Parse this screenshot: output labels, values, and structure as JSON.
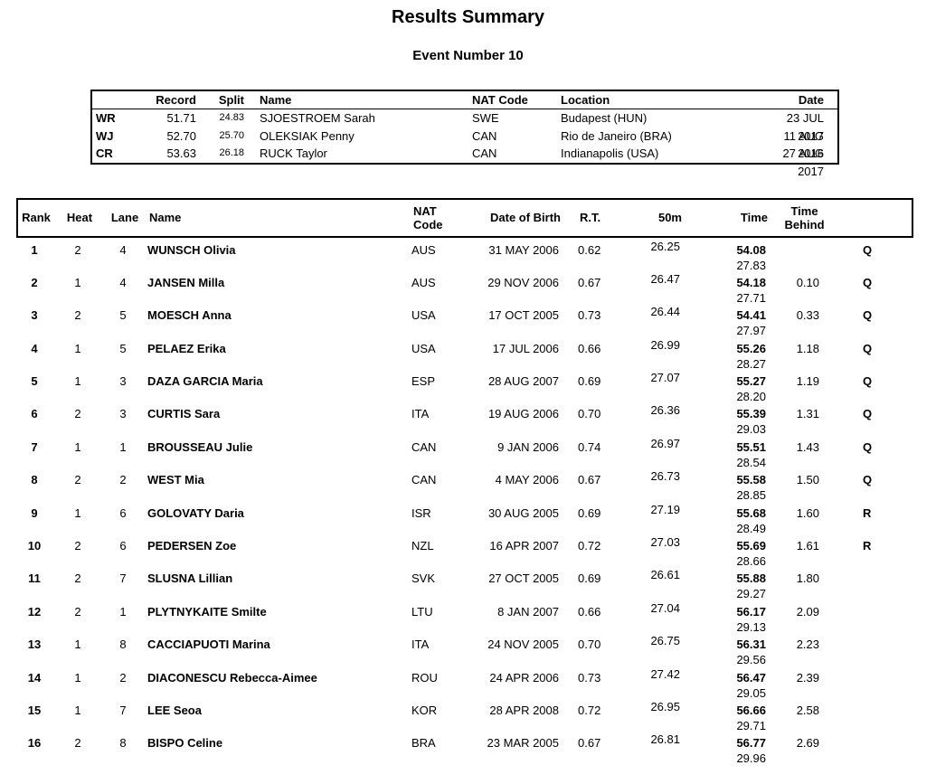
{
  "page": {
    "title": "Results Summary",
    "subtitle": "Event Number 10"
  },
  "colors": {
    "text": "#000000",
    "background": "#ffffff",
    "border": "#000000"
  },
  "records_table": {
    "headers": {
      "type": "",
      "record": "Record",
      "split": "Split",
      "name": "Name",
      "nat": "NAT Code",
      "location": "Location",
      "date": "Date"
    },
    "rows": [
      {
        "type": "WR",
        "record": "51.71",
        "split": "24.83",
        "name": "SJOESTROEM Sarah",
        "nat": "SWE",
        "location": "Budapest (HUN)",
        "date": "23 JUL 2017"
      },
      {
        "type": "WJ",
        "record": "52.70",
        "split": "25.70",
        "name": "OLEKSIAK Penny",
        "nat": "CAN",
        "location": "Rio de Janeiro (BRA)",
        "date": "11 AUG 2016"
      },
      {
        "type": "CR",
        "record": "53.63",
        "split": "26.18",
        "name": "RUCK Taylor",
        "nat": "CAN",
        "location": "Indianapolis (USA)",
        "date": "27 AUG 2017"
      }
    ]
  },
  "results_table": {
    "headers": {
      "rank": "Rank",
      "heat": "Heat",
      "lane": "Lane",
      "name": "Name",
      "nat": "NAT\nCode",
      "dob": "Date of Birth",
      "rt": "R.T.",
      "fifty": "50m",
      "time": "Time",
      "behind": "Time\nBehind",
      "qual": ""
    },
    "rows": [
      {
        "rank": "1",
        "heat": "2",
        "lane": "4",
        "name": "WUNSCH Olivia",
        "nat": "AUS",
        "dob": "31 MAY 2006",
        "rt": "0.62",
        "fifty": "26.25",
        "time": "54.08",
        "split": "27.83",
        "behind": "",
        "qual": "Q"
      },
      {
        "rank": "2",
        "heat": "1",
        "lane": "4",
        "name": "JANSEN Milla",
        "nat": "AUS",
        "dob": "29 NOV 2006",
        "rt": "0.67",
        "fifty": "26.47",
        "time": "54.18",
        "split": "27.71",
        "behind": "0.10",
        "qual": "Q"
      },
      {
        "rank": "3",
        "heat": "2",
        "lane": "5",
        "name": "MOESCH Anna",
        "nat": "USA",
        "dob": "17 OCT 2005",
        "rt": "0.73",
        "fifty": "26.44",
        "time": "54.41",
        "split": "27.97",
        "behind": "0.33",
        "qual": "Q"
      },
      {
        "rank": "4",
        "heat": "1",
        "lane": "5",
        "name": "PELAEZ Erika",
        "nat": "USA",
        "dob": "17 JUL 2006",
        "rt": "0.66",
        "fifty": "26.99",
        "time": "55.26",
        "split": "28.27",
        "behind": "1.18",
        "qual": "Q"
      },
      {
        "rank": "5",
        "heat": "1",
        "lane": "3",
        "name": "DAZA GARCIA Maria",
        "nat": "ESP",
        "dob": "28 AUG 2007",
        "rt": "0.69",
        "fifty": "27.07",
        "time": "55.27",
        "split": "28.20",
        "behind": "1.19",
        "qual": "Q"
      },
      {
        "rank": "6",
        "heat": "2",
        "lane": "3",
        "name": "CURTIS Sara",
        "nat": "ITA",
        "dob": "19 AUG 2006",
        "rt": "0.70",
        "fifty": "26.36",
        "time": "55.39",
        "split": "29.03",
        "behind": "1.31",
        "qual": "Q"
      },
      {
        "rank": "7",
        "heat": "1",
        "lane": "1",
        "name": "BROUSSEAU Julie",
        "nat": "CAN",
        "dob": "9 JAN 2006",
        "rt": "0.74",
        "fifty": "26.97",
        "time": "55.51",
        "split": "28.54",
        "behind": "1.43",
        "qual": "Q"
      },
      {
        "rank": "8",
        "heat": "2",
        "lane": "2",
        "name": "WEST Mia",
        "nat": "CAN",
        "dob": "4 MAY 2006",
        "rt": "0.67",
        "fifty": "26.73",
        "time": "55.58",
        "split": "28.85",
        "behind": "1.50",
        "qual": "Q"
      },
      {
        "rank": "9",
        "heat": "1",
        "lane": "6",
        "name": "GOLOVATY Daria",
        "nat": "ISR",
        "dob": "30 AUG 2005",
        "rt": "0.69",
        "fifty": "27.19",
        "time": "55.68",
        "split": "28.49",
        "behind": "1.60",
        "qual": "R"
      },
      {
        "rank": "10",
        "heat": "2",
        "lane": "6",
        "name": "PEDERSEN Zoe",
        "nat": "NZL",
        "dob": "16 APR 2007",
        "rt": "0.72",
        "fifty": "27.03",
        "time": "55.69",
        "split": "28.66",
        "behind": "1.61",
        "qual": "R"
      },
      {
        "rank": "11",
        "heat": "2",
        "lane": "7",
        "name": "SLUSNA Lillian",
        "nat": "SVK",
        "dob": "27 OCT 2005",
        "rt": "0.69",
        "fifty": "26.61",
        "time": "55.88",
        "split": "29.27",
        "behind": "1.80",
        "qual": ""
      },
      {
        "rank": "12",
        "heat": "2",
        "lane": "1",
        "name": "PLYTNYKAITE Smilte",
        "nat": "LTU",
        "dob": "8 JAN 2007",
        "rt": "0.66",
        "fifty": "27.04",
        "time": "56.17",
        "split": "29.13",
        "behind": "2.09",
        "qual": ""
      },
      {
        "rank": "13",
        "heat": "1",
        "lane": "8",
        "name": "CACCIAPUOTI Marina",
        "nat": "ITA",
        "dob": "24 NOV 2005",
        "rt": "0.70",
        "fifty": "26.75",
        "time": "56.31",
        "split": "29.56",
        "behind": "2.23",
        "qual": ""
      },
      {
        "rank": "14",
        "heat": "1",
        "lane": "2",
        "name": "DIACONESCU Rebecca-Aimee",
        "nat": "ROU",
        "dob": "24 APR 2006",
        "rt": "0.73",
        "fifty": "27.42",
        "time": "56.47",
        "split": "29.05",
        "behind": "2.39",
        "qual": ""
      },
      {
        "rank": "15",
        "heat": "1",
        "lane": "7",
        "name": "LEE Seoa",
        "nat": "KOR",
        "dob": "28 APR 2008",
        "rt": "0.72",
        "fifty": "26.95",
        "time": "56.66",
        "split": "29.71",
        "behind": "2.58",
        "qual": ""
      },
      {
        "rank": "16",
        "heat": "2",
        "lane": "8",
        "name": "BISPO Celine",
        "nat": "BRA",
        "dob": "23 MAR 2005",
        "rt": "0.67",
        "fifty": "26.81",
        "time": "56.77",
        "split": "29.96",
        "behind": "2.69",
        "qual": ""
      }
    ]
  }
}
